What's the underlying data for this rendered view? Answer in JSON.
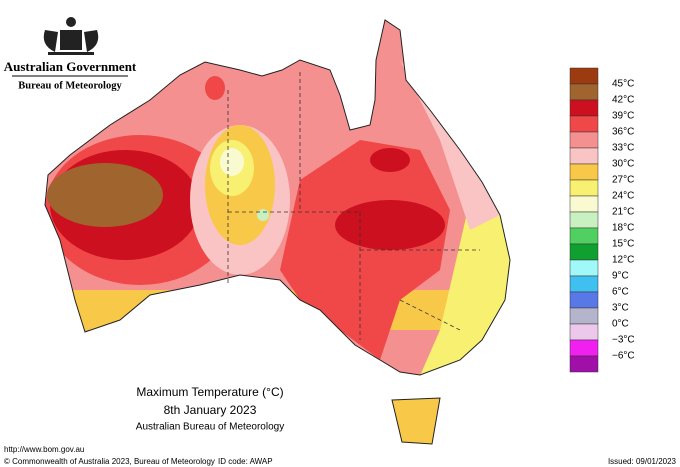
{
  "header": {
    "government": "Australian Government",
    "agency": "Bureau of Meteorology"
  },
  "title": {
    "line1": "Maximum Temperature (°C)",
    "line2": "8th January 2023",
    "line3": "Australian Bureau of Meteorology"
  },
  "legend": {
    "labels": [
      "45°C",
      "42°C",
      "39°C",
      "36°C",
      "33°C",
      "30°C",
      "27°C",
      "24°C",
      "21°C",
      "18°C",
      "15°C",
      "12°C",
      "9°C",
      "6°C",
      "3°C",
      "0°C",
      "−3°C",
      "−6°C"
    ],
    "colors": [
      "#9c3a10",
      "#a0642e",
      "#cc1020",
      "#f04848",
      "#f59090",
      "#fbc4c4",
      "#f8c848",
      "#f8f070",
      "#fafad0",
      "#c8f0c0",
      "#50d060",
      "#10a030",
      "#a0f8f8",
      "#40c0f0",
      "#5878e8",
      "#b4b4cc",
      "#ecc8ec",
      "#f020f0",
      "#a010a8"
    ]
  },
  "footer": {
    "url": "http://www.bom.gov.au",
    "copyright": "© Commonwealth of Australia 2023, Bureau of Meteorology",
    "id_code": "ID code: AWAP",
    "issued": "Issued: 09/01/2023"
  }
}
